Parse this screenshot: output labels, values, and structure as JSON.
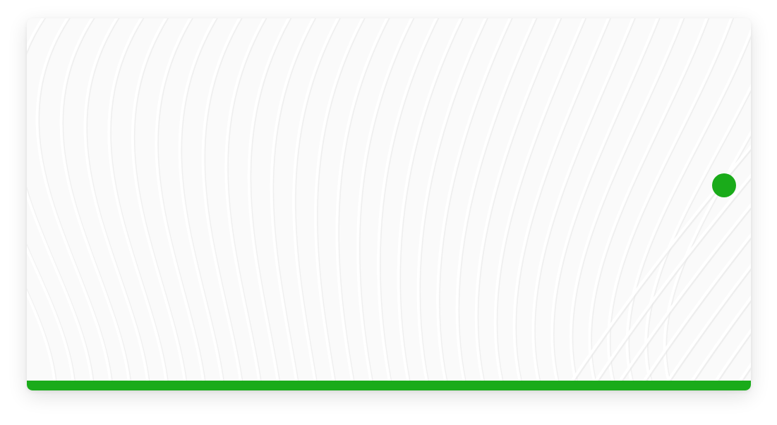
{
  "theme": {
    "accent_color": "#1aab1a",
    "card_background": "#fafafa",
    "pattern_stroke_light": "#ffffff",
    "pattern_stroke_shadow": "#e6e6e6"
  },
  "decor": {
    "pattern": "curved-stripes",
    "side_tab_icon": "side-tab-icon"
  }
}
